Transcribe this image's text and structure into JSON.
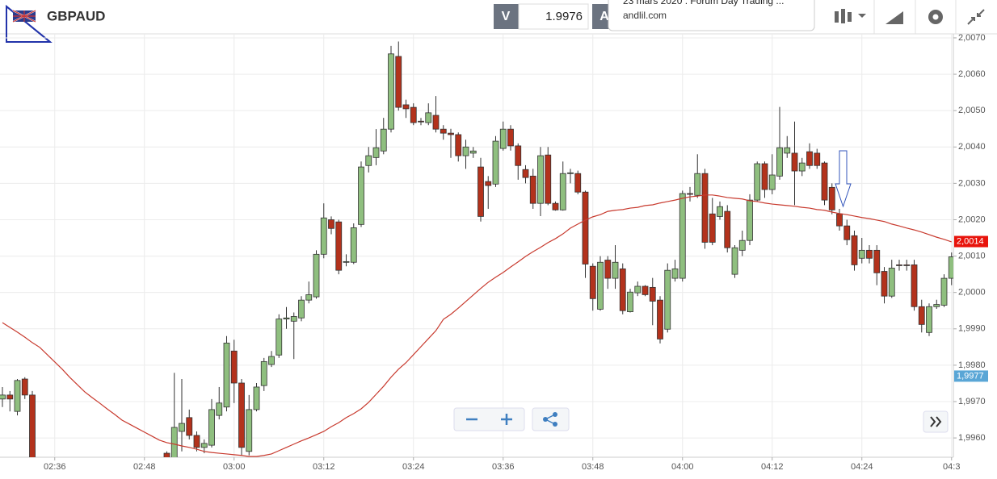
{
  "header": {
    "symbol": "GBPAUD",
    "quote_side": "V",
    "quote_value": 1.9976,
    "other_side": "A",
    "notification": {
      "title": "23 mars 2020 : Forum Day Trading ...",
      "source": "andlil.com"
    }
  },
  "chart_data": {
    "type": "candlestick",
    "title": "GBPAUD",
    "categories": [
      null,
      null,
      null,
      null,
      null,
      null,
      null,
      "02:36",
      null,
      null,
      null,
      null,
      null,
      null,
      null,
      null,
      null,
      null,
      null,
      "02:48",
      null,
      null,
      null,
      null,
      null,
      null,
      null,
      null,
      null,
      null,
      null,
      "03:00",
      null,
      null,
      null,
      null,
      null,
      null,
      null,
      null,
      null,
      null,
      null,
      "03:12",
      null,
      null,
      null,
      null,
      null,
      null,
      null,
      null,
      null,
      null,
      null,
      "03:24",
      null,
      null,
      null,
      null,
      null,
      null,
      null,
      null,
      null,
      null,
      null,
      "03:36",
      null,
      null,
      null,
      null,
      null,
      null,
      null,
      null,
      null,
      null,
      null,
      "03:48",
      null,
      null,
      null,
      null,
      null,
      null,
      null,
      null,
      null,
      null,
      null,
      "04:00",
      null,
      null,
      null,
      null,
      null,
      null,
      null,
      null,
      null,
      null,
      null,
      "04:12",
      null,
      null,
      null,
      null,
      null,
      null,
      null,
      null,
      null,
      null,
      null,
      "04:24",
      null,
      null,
      null,
      null,
      null,
      null,
      null,
      null,
      null,
      null,
      null,
      "04:3"
    ],
    "open": [
      1.99707,
      1.99718,
      1.99673,
      1.99762,
      1.99718,
      null,
      null,
      null,
      null,
      null,
      null,
      null,
      null,
      null,
      null,
      null,
      null,
      null,
      null,
      null,
      null,
      null,
      1.99558,
      1.99545,
      1.99618,
      1.99656,
      1.99607,
      1.99574,
      1.9958,
      1.99662,
      1.99685,
      1.99839,
      1.99751,
      1.99563,
      1.99678,
      1.99744,
      1.99802,
      1.99828,
      1.99927,
      1.99921,
      1.9993,
      1.99979,
      1.99988,
      2.00105,
      2.002,
      2.00194,
      2.00083,
      2.00083,
      2.00187,
      2.00349,
      2.00371,
      2.00389,
      2.00449,
      2.00649,
      2.00516,
      2.00509,
      2.00471,
      2.00467,
      2.00487,
      2.00449,
      2.00438,
      2.00434,
      2.00376,
      2.00383,
      2.00345,
      2.00305,
      2.00298,
      2.00396,
      2.00449,
      2.00403,
      2.00338,
      2.0032,
      2.00245,
      2.00378,
      2.00245,
      2.00227,
      2.00327,
      2.00327,
      2.00276,
      2.00072,
      1.99954,
      2.00089,
      2.00039,
      2.00065,
      1.99947,
      1.99999,
      2.00017,
      2.00014,
      1.99979,
      1.99899,
      2.00039,
      2.00039,
      2.00272,
      2.00267,
      2.00327,
      2.00216,
      2.00209,
      2.00223,
      2.0005,
      2.00116,
      2.00143,
      2.00254,
      2.00354,
      2.00283,
      2.0032,
      2.00383,
      2.00383,
      2.00334,
      2.00387,
      2.00383,
      2.00356,
      2.00289,
      2.00216,
      2.00183,
      2.00156,
      2.00094,
      2.00116,
      2.00116,
      2.00058,
      1.9999,
      2.00076,
      2.00076,
      2.00076,
      1.99961,
      1.9989,
      1.99961,
      1.99965,
      2.00039
    ],
    "high": [
      1.9974,
      1.99729,
      1.99762,
      1.99767,
      1.99729,
      null,
      null,
      null,
      null,
      null,
      null,
      null,
      null,
      null,
      null,
      null,
      null,
      null,
      null,
      null,
      null,
      null,
      1.99563,
      1.99779,
      1.99762,
      1.99678,
      1.99618,
      1.99596,
      1.99707,
      1.9974,
      1.9988,
      1.9987,
      1.99762,
      1.99718,
      1.99751,
      1.9982,
      1.99839,
      1.9994,
      1.9996,
      1.99945,
      1.9999,
      2.0003,
      2.00116,
      2.00245,
      2.00209,
      2.002,
      2.00105,
      2.0019,
      2.0036,
      2.004,
      2.00449,
      2.0048,
      2.00678,
      2.0069,
      2.0053,
      2.0052,
      2.0048,
      2.0052,
      2.0054,
      2.0046,
      2.0045,
      2.0044,
      2.0042,
      2.004,
      2.0037,
      2.0032,
      2.0043,
      2.0047,
      2.0046,
      2.0041,
      2.0035,
      2.0034,
      2.004,
      2.004,
      2.0025,
      2.0036,
      2.0034,
      2.00335,
      2.0028,
      2.0008,
      2.001,
      2.001,
      2.0013,
      2.0008,
      2.0001,
      2.0003,
      2.0002,
      2.0004,
      1.9999,
      2.0008,
      2.0009,
      2.0028,
      2.0029,
      2.0038,
      2.0034,
      2.0026,
      2.0025,
      2.0024,
      2.0013,
      2.0017,
      2.0027,
      2.0036,
      2.0036,
      2.0038,
      2.0051,
      2.0043,
      2.0047,
      2.0037,
      2.0041,
      2.00395,
      2.0036,
      2.003,
      2.0023,
      2.002,
      2.0017,
      2.0015,
      2.0013,
      2.0013,
      2.0007,
      2.0009,
      2.0009,
      2.0009,
      2.0009,
      1.9998,
      1.9997,
      1.9998,
      2.0005,
      2.0011
    ],
    "low": [
      1.99685,
      1.99673,
      1.99662,
      1.99707,
      1.9953,
      null,
      null,
      null,
      null,
      null,
      null,
      null,
      null,
      null,
      null,
      null,
      null,
      null,
      null,
      null,
      null,
      null,
      1.9954,
      1.9954,
      1.99563,
      1.99596,
      1.99563,
      1.99558,
      1.99574,
      1.99651,
      1.99673,
      1.99696,
      1.99552,
      1.99552,
      1.99673,
      1.99729,
      1.99795,
      1.9982,
      1.999,
      1.99817,
      1.99921,
      1.9997,
      1.99983,
      2.00094,
      2.0016,
      2.0005,
      2.00072,
      2.00078,
      2.0018,
      2.0033,
      2.0035,
      2.0038,
      2.0044,
      2.005,
      2.0048,
      2.0046,
      2.0046,
      2.0046,
      2.0044,
      2.0042,
      2.0037,
      2.0036,
      2.0034,
      2.0037,
      2.00195,
      2.0023,
      2.0029,
      2.0039,
      2.0039,
      2.0031,
      2.003,
      2.0023,
      2.0021,
      2.0024,
      2.00225,
      2.00225,
      2.003,
      2.0027,
      2.0004,
      1.9995,
      1.9995,
      2.0001,
      2.0001,
      1.9994,
      1.99945,
      1.9999,
      1.9999,
      1.9991,
      1.9986,
      1.9989,
      2.0003,
      2.0003,
      2.0025,
      2.0026,
      2.0012,
      2.0013,
      2.002,
      2.0011,
      2.0004,
      2.001,
      2.0013,
      2.0025,
      2.0026,
      2.0027,
      2.0031,
      2.0037,
      2.0024,
      2.0032,
      2.0034,
      2.0034,
      2.0024,
      2.00215,
      2.0017,
      2.0013,
      2.0006,
      2.0008,
      2.0008,
      2.0002,
      1.9997,
      1.99985,
      2.0006,
      2.0006,
      1.9995,
      1.9989,
      1.9988,
      1.99955,
      1.9996,
      2.0002
    ],
    "close": [
      1.99718,
      1.99707,
      1.99758,
      1.99718,
      1.9954,
      null,
      null,
      null,
      null,
      null,
      null,
      null,
      null,
      null,
      null,
      null,
      null,
      null,
      null,
      null,
      null,
      null,
      1.99545,
      1.99629,
      1.9964,
      1.99607,
      1.99574,
      1.99585,
      1.99678,
      1.99696,
      1.99861,
      1.99751,
      1.99574,
      1.99678,
      1.9974,
      1.9981,
      1.99824,
      1.99927,
      1.9993,
      1.99934,
      1.99979,
      1.99994,
      2.00105,
      2.00205,
      2.00176,
      2.00061,
      2.00085,
      2.00178,
      2.00345,
      2.00376,
      2.00398,
      2.00449,
      2.00656,
      2.00509,
      2.00505,
      2.00467,
      2.00469,
      2.00494,
      2.00449,
      2.00438,
      2.00434,
      2.00376,
      2.004,
      2.00389,
      2.00209,
      2.00294,
      2.00416,
      2.00449,
      2.00403,
      2.00349,
      2.00316,
      2.00245,
      2.00376,
      2.00245,
      2.00227,
      2.00327,
      2.00329,
      2.00276,
      2.00078,
      1.99983,
      2.00083,
      2.00039,
      2.00083,
      1.9995,
      2.00001,
      2.00017,
      1.99994,
      1.99976,
      1.99872,
      2.00061,
      2.00065,
      2.00272,
      2.0027,
      2.00327,
      2.00138,
      2.00138,
      2.00236,
      2.00123,
      2.00123,
      2.00143,
      2.00254,
      2.00354,
      2.00283,
      2.00323,
      2.00398,
      2.00398,
      2.00334,
      2.00356,
      2.00349,
      2.00349,
      2.00254,
      2.00227,
      2.00183,
      2.00145,
      2.00076,
      2.00116,
      2.00094,
      2.00054,
      1.9999,
      2.00067,
      2.00074,
      2.00074,
      1.99961,
      1.99912,
      1.99961,
      1.99967,
      2.00039,
      2.00098
    ],
    "up_color": "#8fbf7f",
    "down_color": "#b3321c",
    "ma": {
      "color": "#c83a2e",
      "values": [
        1.99917,
        1.99904,
        1.99891,
        1.99877,
        1.99862,
        1.99849,
        1.99829,
        1.99809,
        1.99789,
        1.99767,
        1.99747,
        1.99727,
        1.99711,
        1.99696,
        1.9968,
        1.99665,
        1.99649,
        1.99638,
        1.99627,
        1.99616,
        1.99605,
        1.99594,
        1.99587,
        1.99583,
        1.99578,
        1.99574,
        1.99569,
        1.99563,
        1.9956,
        1.99558,
        1.99556,
        1.99554,
        1.99552,
        1.99549,
        1.99549,
        1.99552,
        1.99556,
        1.99565,
        1.99574,
        1.99583,
        1.99592,
        1.996,
        1.99609,
        1.99618,
        1.99631,
        1.99642,
        1.99656,
        1.99667,
        1.9968,
        1.99698,
        1.9972,
        1.99742,
        1.99767,
        1.99789,
        1.99807,
        1.99829,
        1.99851,
        1.99873,
        1.99895,
        1.99926,
        1.9994,
        1.99957,
        1.99975,
        1.99993,
        2.00011,
        2.00028,
        2.00042,
        2.00055,
        2.0007,
        2.00084,
        2.00099,
        2.00112,
        2.00124,
        2.00137,
        2.00148,
        2.00161,
        2.00177,
        2.00188,
        2.00199,
        2.00208,
        2.00214,
        2.00223,
        2.00226,
        2.00228,
        2.00232,
        2.00234,
        2.00239,
        2.00241,
        2.00246,
        2.0025,
        2.00254,
        2.00259,
        2.00263,
        2.00265,
        2.00268,
        2.00268,
        2.00265,
        2.00261,
        2.00259,
        2.00257,
        2.00252,
        2.0025,
        2.00246,
        2.00243,
        2.00241,
        2.00239,
        2.00237,
        2.00234,
        2.00232,
        2.00228,
        2.00226,
        2.00221,
        2.00217,
        2.00214,
        2.0021,
        2.00206,
        2.00203,
        2.00199,
        2.00195,
        2.00188,
        2.00183,
        2.00177,
        2.00172,
        2.00166,
        2.00159,
        2.00152,
        2.00146,
        2.00139
      ]
    },
    "ylim": [
      1.99547,
      2.00711
    ],
    "yticks": [
      {
        "value": 2.007,
        "label": "2,0070"
      },
      {
        "value": 2.006,
        "label": "2,0060"
      },
      {
        "value": 2.005,
        "label": "2,0050"
      },
      {
        "value": 2.004,
        "label": "2,0040"
      },
      {
        "value": 2.003,
        "label": "2,0030"
      },
      {
        "value": 2.002,
        "label": "2,0020"
      },
      {
        "value": 2.001,
        "label": "2,0010"
      },
      {
        "value": 2.0,
        "label": "2,0000"
      },
      {
        "value": 1.999,
        "label": "1,9990"
      },
      {
        "value": 1.998,
        "label": "1,9980"
      },
      {
        "value": 1.997,
        "label": "1,9970"
      },
      {
        "value": 1.996,
        "label": "1,9960"
      }
    ],
    "price_labels": [
      {
        "value": 2.0014,
        "label": "2,0014",
        "color": "#e8140c"
      },
      {
        "value": 1.9977,
        "label": "1,9977",
        "color": "#5aa6d6"
      }
    ],
    "grid": true
  }
}
